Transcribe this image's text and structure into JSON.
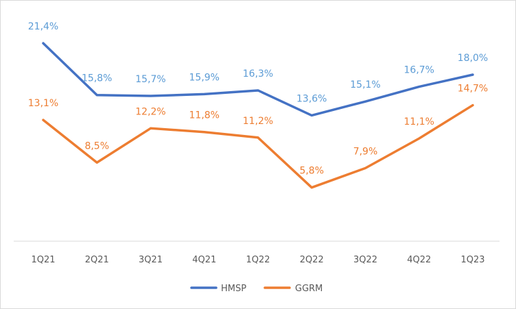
{
  "chart_data": {
    "type": "line",
    "title": "",
    "xlabel": "",
    "ylabel": "",
    "ylim": [
      0,
      24
    ],
    "grid": false,
    "legend_position": "bottom",
    "categories": [
      "1Q21",
      "2Q21",
      "3Q21",
      "4Q21",
      "1Q22",
      "2Q22",
      "3Q22",
      "4Q22",
      "1Q23"
    ],
    "series": [
      {
        "name": "HMSP",
        "color": "#4472c4",
        "label_color": "#5b9bd5",
        "values": [
          21.4,
          15.8,
          15.7,
          15.9,
          16.3,
          13.6,
          15.1,
          16.7,
          18.0
        ],
        "labels": [
          "21,4%",
          "15,8%",
          "15,7%",
          "15,9%",
          "16,3%",
          "13,6%",
          "15,1%",
          "16,7%",
          "18,0%"
        ]
      },
      {
        "name": "GGRM",
        "color": "#ed7d31",
        "label_color": "#ed7d31",
        "values": [
          13.1,
          8.5,
          12.2,
          11.8,
          11.2,
          5.8,
          7.9,
          11.1,
          14.7
        ],
        "labels": [
          "13,1%",
          "8,5%",
          "12,2%",
          "11,8%",
          "11,2%",
          "5,8%",
          "7,9%",
          "11,1%",
          "14,7%"
        ]
      }
    ]
  }
}
